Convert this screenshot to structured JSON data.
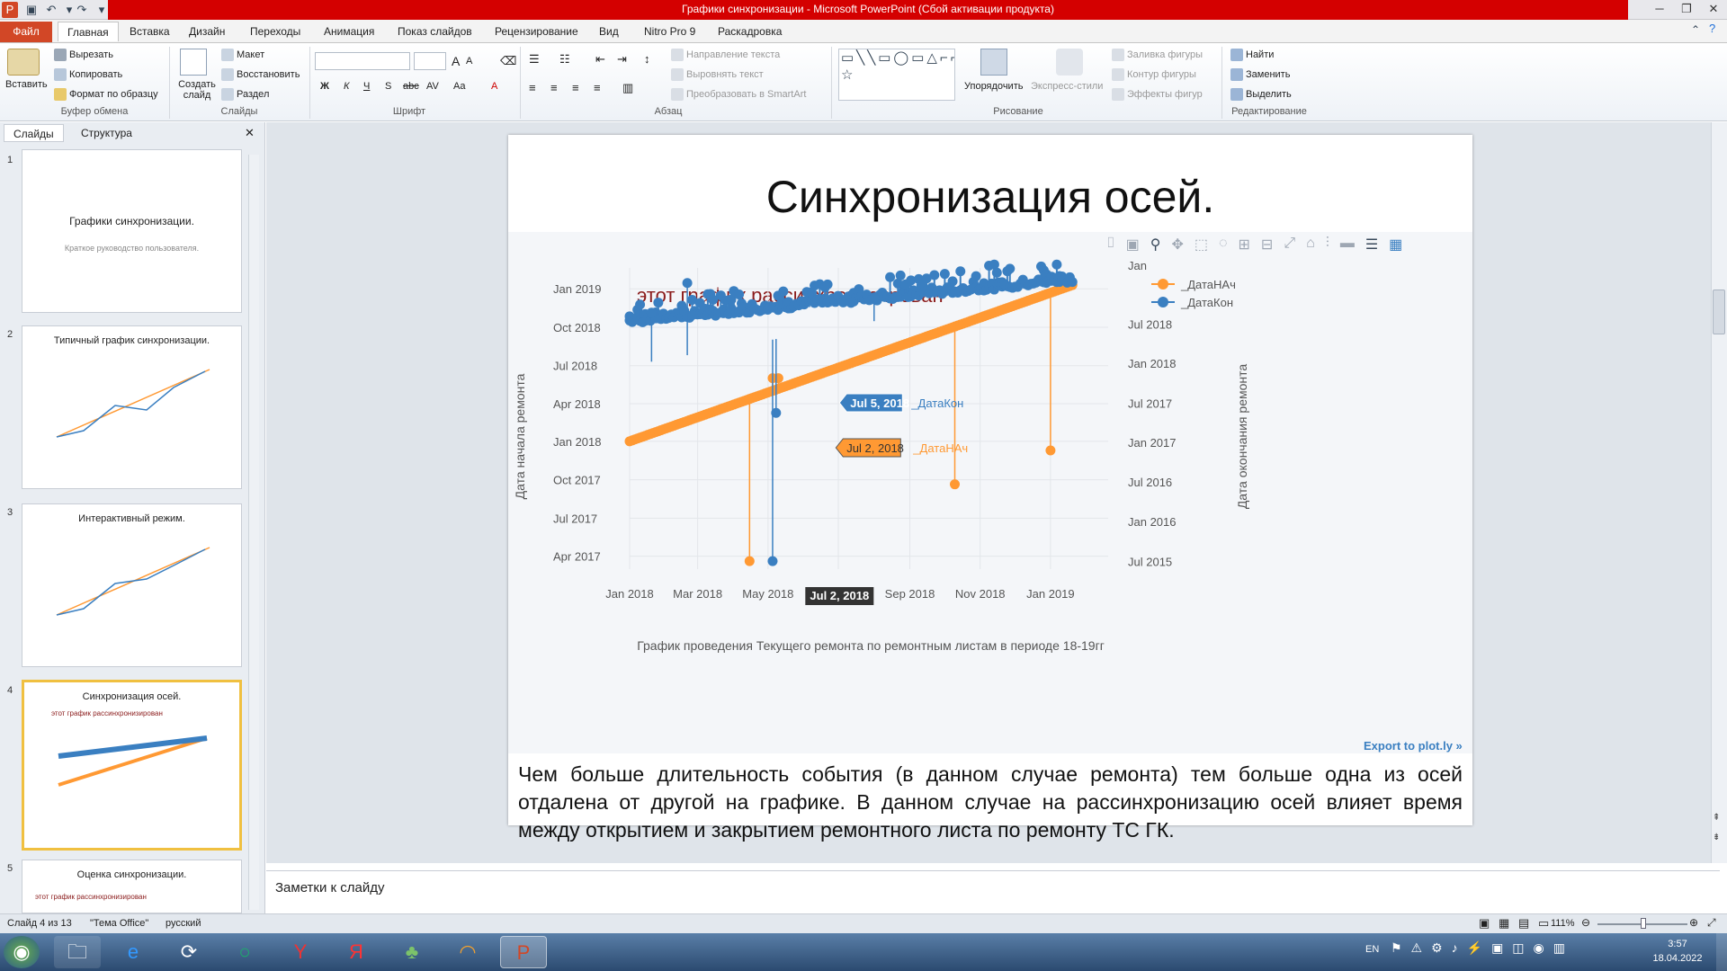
{
  "window": {
    "title": "Графики синхронизации - Microsoft PowerPoint (Сбой активации продукта)"
  },
  "tabs": [
    "Файл",
    "Главная",
    "Вставка",
    "Дизайн",
    "Переходы",
    "Анимация",
    "Показ слайдов",
    "Рецензирование",
    "Вид",
    "Nitro Pro 9",
    "Раскадровка"
  ],
  "ribbon": {
    "clipboard": {
      "paste": "Вставить",
      "cut": "Вырезать",
      "copy": "Копировать",
      "format": "Формат по образцу",
      "label": "Буфер обмена"
    },
    "slides": {
      "new": "Создать слайд",
      "layout": "Макет",
      "reset": "Восстановить",
      "section": "Раздел",
      "label": "Слайды"
    },
    "font": {
      "label": "Шрифт",
      "bold": "Ж",
      "italic": "К",
      "underline": "Ч",
      "strike": "S",
      "abc": "abc",
      "av": "AV",
      "aa": "Aa",
      "a": "A"
    },
    "paragraph": {
      "label": "Абзац",
      "dir": "Направление текста",
      "align": "Выровнять текст",
      "smart": "Преобразовать в SmartArt"
    },
    "drawing": {
      "label": "Рисование",
      "arrange": "Упорядочить",
      "styles": "Экспресс-стили",
      "fill": "Заливка фигуры",
      "outline": "Контур фигуры",
      "effects": "Эффекты фигур"
    },
    "editing": {
      "label": "Редактирование",
      "find": "Найти",
      "replace": "Заменить",
      "select": "Выделить"
    }
  },
  "panel": {
    "tab_slides": "Слайды",
    "tab_outline": "Структура"
  },
  "thumbs": [
    {
      "num": "1",
      "title": "Графики синхронизации.",
      "sub": "Краткое руководство пользователя."
    },
    {
      "num": "2",
      "title": "Типичный график синхронизации."
    },
    {
      "num": "3",
      "title": "Интерактивный режим."
    },
    {
      "num": "4",
      "title": "Синхронизация осей.",
      "sub": "этот график рассинхронизирован"
    },
    {
      "num": "5",
      "title": "Оценка синхронизации.",
      "sub": "этот график рассинхронизирован"
    }
  ],
  "slide": {
    "title": "Синхронизация осей.",
    "body": "Чем больше длительность события (в данном случае ремонта) тем больше одна из осей отдалена от другой на графике. В данном случае на рассинхронизацию осей влияет время между открытием и закрытием ремонтного листа по ремонту ТС ГК.",
    "export_link": "Export to plot.ly »"
  },
  "chart_data": {
    "type": "scatter",
    "title": "этот график рассинхронизирован",
    "xlabel": "График проведения Текущего ремонта по ремонтным листам в периоде 18-19гг",
    "ylabel": "Дата начала ремонта",
    "y2label": "Дата окончания ремонта",
    "x_ticks": [
      "Jan 2018",
      "Mar 2018",
      "May 2018",
      "Jul 2018",
      "Sep 2018",
      "Nov 2018",
      "Jan 2019"
    ],
    "y_ticks": [
      "Apr 2017",
      "Jul 2017",
      "Oct 2017",
      "Jan 2018",
      "Apr 2018",
      "Jul 2018",
      "Oct 2018",
      "Jan 2019"
    ],
    "y2_ticks": [
      "Jul 2015",
      "Jan 2016",
      "Jul 2016",
      "Jan 2017",
      "Jul 2017",
      "Jan 2018",
      "Jul 2018",
      "Jan 2019"
    ],
    "legend": "top-right",
    "colors": {
      "start": "#ff9933",
      "end": "#3a7fc1"
    },
    "series": [
      {
        "name": "_ДатаНАч",
        "trend_x": [
          "2018-01-01",
          "2019-01-20"
        ],
        "trend_y": [
          "2018-01-01",
          "2019-01-10"
        ],
        "outliers": [
          {
            "x": "2018-04-15",
            "y": "2017-03-20"
          },
          {
            "x": "2018-05-05",
            "y": "2018-06-01"
          },
          {
            "x": "2018-05-10",
            "y": "2018-06-01"
          },
          {
            "x": "2018-10-10",
            "y": "2017-09-20"
          },
          {
            "x": "2019-01-01",
            "y": "2017-12-10"
          }
        ]
      },
      {
        "name": "_ДатаКон",
        "trend_x": [
          "2018-01-01",
          "2019-01-20"
        ],
        "trend_y": [
          "2018-07-01",
          "2019-01-10"
        ],
        "outliers": [
          {
            "x": "2018-02-20",
            "y": "2019-01-15"
          },
          {
            "x": "2018-05-05",
            "y": "2017-03-20"
          },
          {
            "x": "2018-05-08",
            "y": "2018-03-10"
          },
          {
            "x": "2018-01-20",
            "y": "2018-11-05"
          },
          {
            "x": "2018-08-01",
            "y": "2018-12-10"
          }
        ]
      }
    ],
    "hover_labels": [
      {
        "text": "Jul 5, 2018",
        "series": "_ДатаКон"
      },
      {
        "text": "Jul 2, 2018",
        "series": "_ДатаНАч"
      }
    ],
    "x_hover": "Jul 2, 2018",
    "y2_top_clipped": "Jan"
  },
  "notes": {
    "placeholder": "Заметки к слайду"
  },
  "status": {
    "slide": "Слайд 4 из 13",
    "theme": "\"Тема Office\"",
    "lang": "русский",
    "zoom": "111%"
  },
  "tray": {
    "lang": "EN",
    "time": "3:57",
    "date": "18.04.2022"
  }
}
